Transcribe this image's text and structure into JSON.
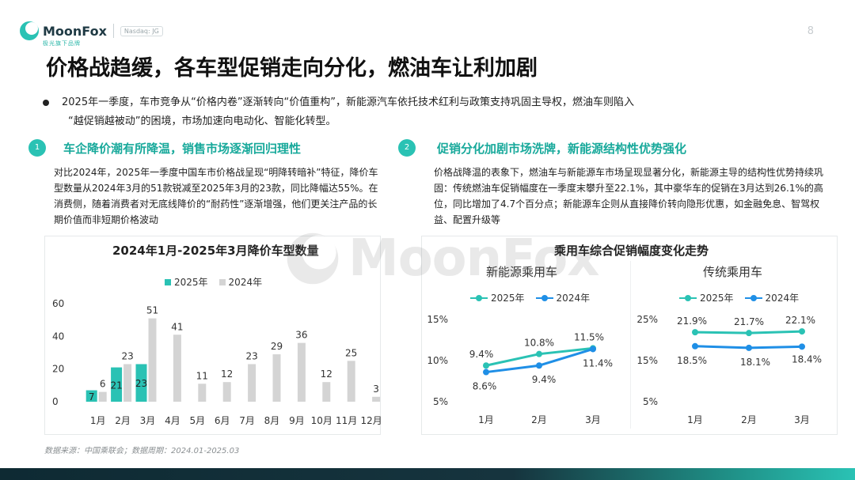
{
  "brand": {
    "name": "MoonFox",
    "sub": "极光旗下品牌",
    "badge": "Nasdaq: JG",
    "page": "8",
    "colors": {
      "teal": "#2ac2b4",
      "grey": "#d4d4d4",
      "blue": "#1f8fe6",
      "dark": "#0e2a33"
    }
  },
  "title": "价格战趋缓，各车型促销走向分化，燃油车让利加剧",
  "intro": {
    "line1": "2025年一季度，车市竞争从“价格内卷”逐渐转向“价值重构”，新能源汽车依托技术红利与政策支持巩固主导权，燃油车则陷入",
    "line2": "“越促销越被动”的困境，市场加速向电动化、智能化转型。"
  },
  "section1": {
    "num": "1",
    "title": "车企降价潮有所降温，销售市场逐渐回归理性",
    "body": "对比2024年，2025年一季度中国车市价格战呈现“明降转暗补”特征，降价车型数量从2024年3月的51款锐减至2025年3月的23款，同比降幅达55%。在消费侧，随着消费者对无底线降价的“耐药性”逐渐增强，他们更关注产品的长期价值而非短期价格波动"
  },
  "section2": {
    "num": "2",
    "title": "促销分化加剧市场洗牌，新能源结构性优势强化",
    "body": "价格战降温的表象下，燃油车与新能源车市场呈现显著分化，新能源主导的结构性优势持续巩固：传统燃油车促销幅度在一季度末攀升至22.1%，其中豪华车的促销在3月达到26.1%的高位，同比增加了4.7个百分点；新能源车企则从直接降价转向隐形优惠，如金融免息、智驾权益、配置升级等"
  },
  "source": "数据来源：中国乘联会；数据周期：2024.01-2025.03",
  "chart_data": [
    {
      "type": "bar",
      "title": "2024年1月-2025年3月降价车型数量",
      "categories": [
        "1月",
        "2月",
        "3月",
        "4月",
        "5月",
        "6月",
        "7月",
        "8月",
        "9月",
        "10月",
        "11月",
        "12月"
      ],
      "series": [
        {
          "name": "2025年",
          "color": "#2ac2b4",
          "values": [
            7,
            21,
            23,
            null,
            null,
            null,
            null,
            null,
            null,
            null,
            null,
            null
          ]
        },
        {
          "name": "2024年",
          "color": "#d4d4d4",
          "values": [
            6,
            23,
            51,
            41,
            11,
            12,
            23,
            29,
            36,
            12,
            25,
            3
          ]
        }
      ],
      "ylim": [
        0,
        60
      ],
      "yticks": [
        0,
        20,
        40,
        60
      ],
      "legend": "top"
    },
    {
      "type": "line",
      "group_title": "乘用车综合促销幅度变化走势",
      "title": "新能源乘用车",
      "categories": [
        "1月",
        "2月",
        "3月"
      ],
      "series": [
        {
          "name": "2025年",
          "color": "#2ac2b4",
          "values": [
            9.4,
            10.8,
            11.5
          ]
        },
        {
          "name": "2024年",
          "color": "#1f8fe6",
          "values": [
            8.6,
            9.4,
            11.4
          ]
        }
      ],
      "ylim": [
        5,
        15
      ],
      "yticks": [
        "15%",
        "10%",
        "5%"
      ],
      "unit": "%",
      "legend": "top"
    },
    {
      "type": "line",
      "title": "传统乘用车",
      "categories": [
        "1月",
        "2月",
        "3月"
      ],
      "series": [
        {
          "name": "2025年",
          "color": "#2ac2b4",
          "values": [
            21.9,
            21.7,
            22.1
          ]
        },
        {
          "name": "2024年",
          "color": "#1f8fe6",
          "values": [
            18.5,
            18.1,
            18.4
          ]
        }
      ],
      "ylim": [
        5,
        25
      ],
      "yticks": [
        "25%",
        "15%",
        "5%"
      ],
      "unit": "%",
      "legend": "top"
    }
  ]
}
